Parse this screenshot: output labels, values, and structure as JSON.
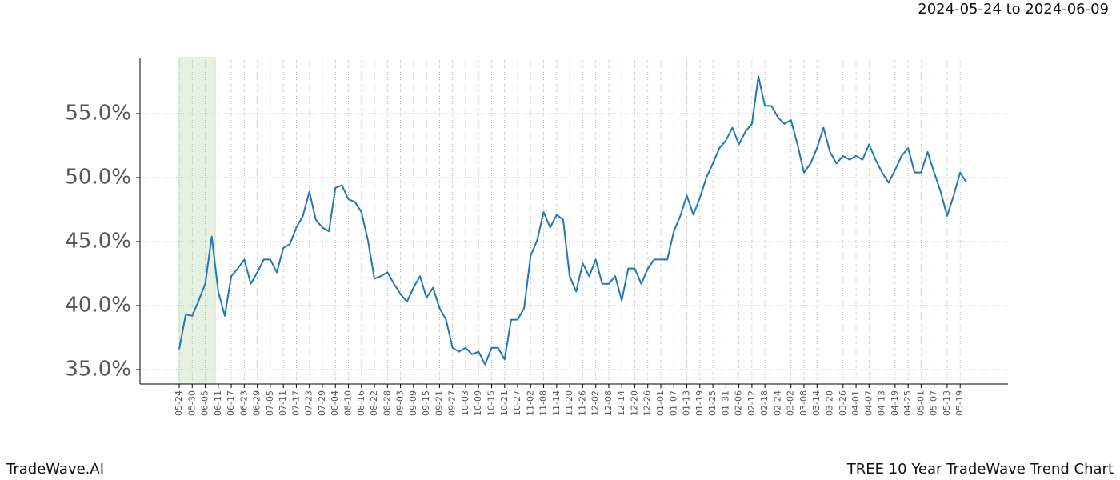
{
  "chart_data": {
    "type": "line",
    "title": "TREE 10 Year TradeWave Trend Chart",
    "subtitle": "2024-05-24 to 2024-06-09",
    "brand": "TradeWave.AI",
    "categories": [
      "05-24",
      null,
      "05-30",
      null,
      "06-05",
      null,
      "06-11",
      null,
      "06-17",
      null,
      "06-23",
      null,
      "06-29",
      null,
      "07-05",
      null,
      "07-11",
      null,
      "07-17",
      null,
      "07-23",
      null,
      "07-29",
      null,
      "08-04",
      null,
      "08-10",
      null,
      "08-16",
      null,
      "08-22",
      null,
      "08-28",
      null,
      "09-03",
      null,
      "09-09",
      null,
      "09-15",
      null,
      "09-21",
      null,
      "09-27",
      null,
      "10-03",
      null,
      "10-09",
      null,
      "10-15",
      null,
      "10-21",
      null,
      "10-27",
      null,
      "11-02",
      null,
      "11-08",
      null,
      "11-14",
      null,
      "11-20",
      null,
      "11-26",
      null,
      "12-02",
      null,
      "12-08",
      null,
      "12-14",
      null,
      "12-20",
      null,
      "12-26",
      null,
      "01-01",
      null,
      "01-07",
      null,
      "01-13",
      null,
      "01-19",
      null,
      "01-25",
      null,
      "01-31",
      null,
      "02-06",
      null,
      "02-12",
      null,
      "02-18",
      null,
      "02-24",
      null,
      "03-02",
      null,
      "03-08",
      null,
      "03-14",
      null,
      "03-20",
      null,
      "03-26",
      null,
      "04-01",
      null,
      "04-07",
      null,
      "04-13",
      null,
      "04-19",
      null,
      "04-25",
      null,
      "05-01",
      null,
      "05-07",
      null,
      "05-13",
      null,
      "05-19",
      null
    ],
    "series": [
      {
        "name": "TREE",
        "color": "#1f77b4",
        "values": [
          36.6,
          39.3,
          39.2,
          40.4,
          41.7,
          45.4,
          41.1,
          39.2,
          42.3,
          42.9,
          43.6,
          41.7,
          42.6,
          43.6,
          43.6,
          42.6,
          44.5,
          44.8,
          46.1,
          47.0,
          48.9,
          46.7,
          46.1,
          45.8,
          49.2,
          49.4,
          48.3,
          48.1,
          47.3,
          45.1,
          42.1,
          42.3,
          42.6,
          41.7,
          40.9,
          40.3,
          41.4,
          42.3,
          40.6,
          41.4,
          39.8,
          38.9,
          36.7,
          36.4,
          36.7,
          36.2,
          36.4,
          35.4,
          36.7,
          36.7,
          35.8,
          38.9,
          38.9,
          39.8,
          43.9,
          45.1,
          47.3,
          46.1,
          47.1,
          46.7,
          42.3,
          41.1,
          43.3,
          42.3,
          43.6,
          41.7,
          41.7,
          42.3,
          40.4,
          42.9,
          42.9,
          41.7,
          42.9,
          43.6,
          43.6,
          43.6,
          45.8,
          47.0,
          48.6,
          47.1,
          48.4,
          50.0,
          51.1,
          52.3,
          52.9,
          53.9,
          52.6,
          53.6,
          54.2,
          57.9,
          55.6,
          55.6,
          54.7,
          54.2,
          54.5,
          52.6,
          50.4,
          51.1,
          52.3,
          53.9,
          52.0,
          51.1,
          51.7,
          51.4,
          51.7,
          51.4,
          52.6,
          51.4,
          50.4,
          49.6,
          50.6,
          51.7,
          52.3,
          50.4,
          50.4,
          52.0,
          50.4,
          48.9,
          47.0,
          48.6,
          50.4,
          49.6
        ]
      }
    ],
    "ylim": [
      33.875,
      59.375
    ],
    "yticks": [
      {
        "value": 35,
        "label": "35.0%"
      },
      {
        "value": 40,
        "label": "40.0%"
      },
      {
        "value": 45,
        "label": "45.0%"
      },
      {
        "value": 50,
        "label": "50.0%"
      },
      {
        "value": 55,
        "label": "55.0%"
      }
    ],
    "grid": true
  }
}
